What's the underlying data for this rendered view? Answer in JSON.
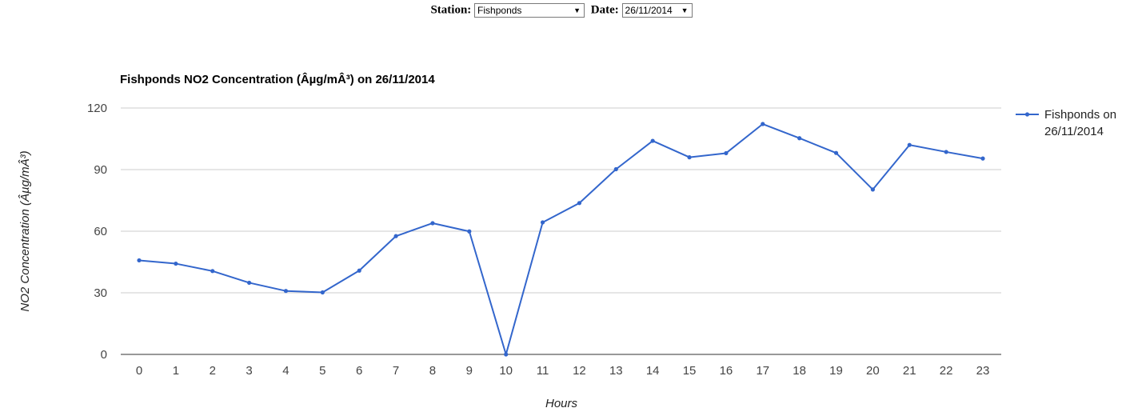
{
  "controls": {
    "station_label": "Station:",
    "station_value": "Fishponds",
    "date_label": "Date:",
    "date_value": "26/11/2014"
  },
  "chart_data": {
    "type": "line",
    "title": "Fishponds NO2 Concentration (Âµg/mÂ³) on 26/11/2014",
    "xlabel": "Hours",
    "ylabel": "NO2 Concentration (Âµg/mÂ³)",
    "x": [
      0,
      1,
      2,
      3,
      4,
      5,
      6,
      7,
      8,
      9,
      10,
      11,
      12,
      13,
      14,
      15,
      16,
      17,
      18,
      19,
      20,
      21,
      22,
      23
    ],
    "ylim": [
      0,
      120
    ],
    "yticks": [
      0,
      30,
      60,
      90,
      120
    ],
    "grid": true,
    "legend_position": "right",
    "series": [
      {
        "name": "Fishponds on 26/11/2014",
        "legend_lines": [
          "Fishponds on",
          "26/11/2014"
        ],
        "color": "#3366cc",
        "values": [
          45.8,
          44.2,
          40.6,
          34.9,
          30.9,
          30.2,
          40.8,
          57.6,
          63.9,
          59.9,
          0,
          64.3,
          73.7,
          90.2,
          104.0,
          96.0,
          98.0,
          112.2,
          105.3,
          98.1,
          80.3,
          102.0,
          98.6,
          95.4
        ]
      }
    ]
  }
}
